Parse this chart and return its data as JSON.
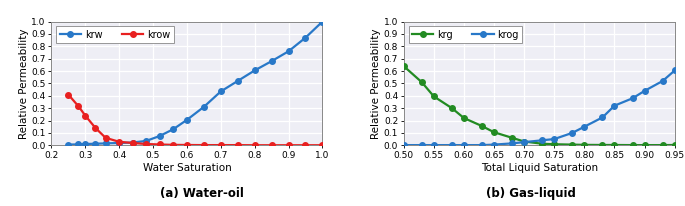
{
  "plot1": {
    "title": "(a) Water-oil",
    "xlabel": "Water Saturation",
    "ylabel": "Relative Permeability",
    "xlim": [
      0.2,
      1.0
    ],
    "ylim": [
      0.0,
      1.0
    ],
    "xticks": [
      0.2,
      0.3,
      0.4,
      0.5,
      0.6,
      0.7,
      0.8,
      0.9,
      1.0
    ],
    "yticks": [
      0.0,
      0.1,
      0.2,
      0.3,
      0.4,
      0.5,
      0.6,
      0.7,
      0.8,
      0.9,
      1.0
    ],
    "krw": {
      "x": [
        0.25,
        0.28,
        0.3,
        0.33,
        0.36,
        0.4,
        0.44,
        0.48,
        0.52,
        0.56,
        0.6,
        0.65,
        0.7,
        0.75,
        0.8,
        0.85,
        0.9,
        0.95,
        1.0
      ],
      "y": [
        0.005,
        0.007,
        0.01,
        0.012,
        0.015,
        0.018,
        0.022,
        0.035,
        0.075,
        0.13,
        0.205,
        0.31,
        0.435,
        0.52,
        0.605,
        0.68,
        0.76,
        0.87,
        1.0
      ],
      "color": "#2878C8",
      "marker": "o",
      "label": "krw"
    },
    "krow": {
      "x": [
        0.25,
        0.28,
        0.3,
        0.33,
        0.36,
        0.4,
        0.44,
        0.48,
        0.52,
        0.56,
        0.6,
        0.65,
        0.7,
        0.75,
        0.8,
        0.85,
        0.9,
        0.95,
        1.0
      ],
      "y": [
        0.41,
        0.315,
        0.24,
        0.14,
        0.06,
        0.028,
        0.018,
        0.01,
        0.006,
        0.003,
        0.002,
        0.001,
        0.001,
        0.001,
        0.0,
        0.0,
        0.0,
        0.0,
        0.0
      ],
      "color": "#E82020",
      "marker": "o",
      "label": "krow"
    }
  },
  "plot2": {
    "title": "(b) Gas-liquid",
    "xlabel": "Total Liquid Saturation",
    "ylabel": "Relative Permeability",
    "xlim": [
      0.5,
      0.95
    ],
    "ylim": [
      0.0,
      1.0
    ],
    "xticks": [
      0.5,
      0.55,
      0.6,
      0.65,
      0.7,
      0.75,
      0.8,
      0.85,
      0.9,
      0.95
    ],
    "yticks": [
      0.0,
      0.1,
      0.2,
      0.3,
      0.4,
      0.5,
      0.6,
      0.7,
      0.8,
      0.9,
      1.0
    ],
    "krg": {
      "x": [
        0.5,
        0.53,
        0.55,
        0.58,
        0.6,
        0.63,
        0.65,
        0.68,
        0.7,
        0.73,
        0.75,
        0.78,
        0.8,
        0.83,
        0.85,
        0.88,
        0.9,
        0.93,
        0.95
      ],
      "y": [
        0.64,
        0.51,
        0.395,
        0.3,
        0.22,
        0.155,
        0.105,
        0.06,
        0.03,
        0.012,
        0.008,
        0.005,
        0.003,
        0.002,
        0.002,
        0.001,
        0.001,
        0.001,
        0.002
      ],
      "color": "#228B22",
      "marker": "o",
      "label": "krg"
    },
    "krog": {
      "x": [
        0.5,
        0.53,
        0.55,
        0.58,
        0.6,
        0.63,
        0.65,
        0.68,
        0.7,
        0.73,
        0.75,
        0.78,
        0.8,
        0.83,
        0.85,
        0.88,
        0.9,
        0.93,
        0.95
      ],
      "y": [
        0.001,
        0.001,
        0.001,
        0.001,
        0.001,
        0.001,
        0.005,
        0.015,
        0.025,
        0.04,
        0.05,
        0.1,
        0.15,
        0.225,
        0.32,
        0.38,
        0.44,
        0.52,
        0.605
      ],
      "color": "#2878C8",
      "marker": "o",
      "label": "krog"
    }
  },
  "background_color": "#eeeef5",
  "grid_color": "white",
  "linewidth": 1.6,
  "markersize": 4.0
}
